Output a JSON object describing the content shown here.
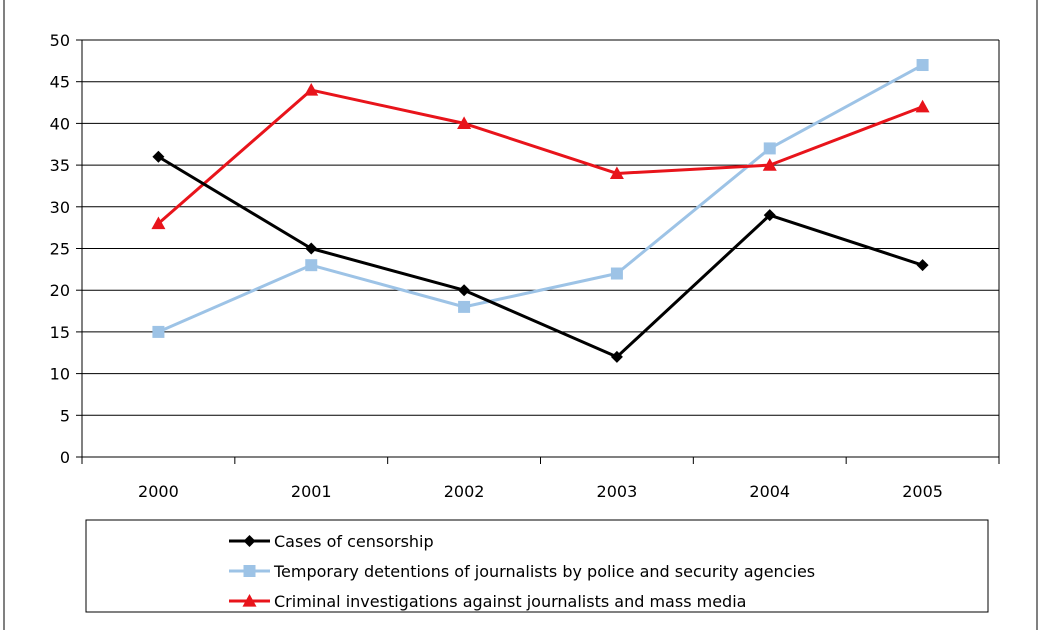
{
  "chart_data": {
    "type": "line",
    "title": "",
    "xlabel": "",
    "ylabel": "",
    "categories": [
      "2000",
      "2001",
      "2002",
      "2003",
      "2004",
      "2005"
    ],
    "ylim": [
      0,
      50
    ],
    "yticks": [
      0,
      5,
      10,
      15,
      20,
      25,
      30,
      35,
      40,
      45,
      50
    ],
    "grid": "horizontal",
    "legend": "bottom",
    "series": [
      {
        "name": "Cases of censorship",
        "values": [
          36,
          25,
          20,
          12,
          29,
          23
        ],
        "color": "#000000",
        "marker": "diamond"
      },
      {
        "name": "Temporary detentions of journalists by police and security agencies",
        "values": [
          15,
          23,
          18,
          22,
          37,
          47
        ],
        "color": "#9dc3e6",
        "marker": "square"
      },
      {
        "name": "Criminal investigations against journalists and mass media",
        "values": [
          28,
          44,
          40,
          34,
          35,
          42
        ],
        "color": "#e8141b",
        "marker": "triangle"
      }
    ]
  }
}
